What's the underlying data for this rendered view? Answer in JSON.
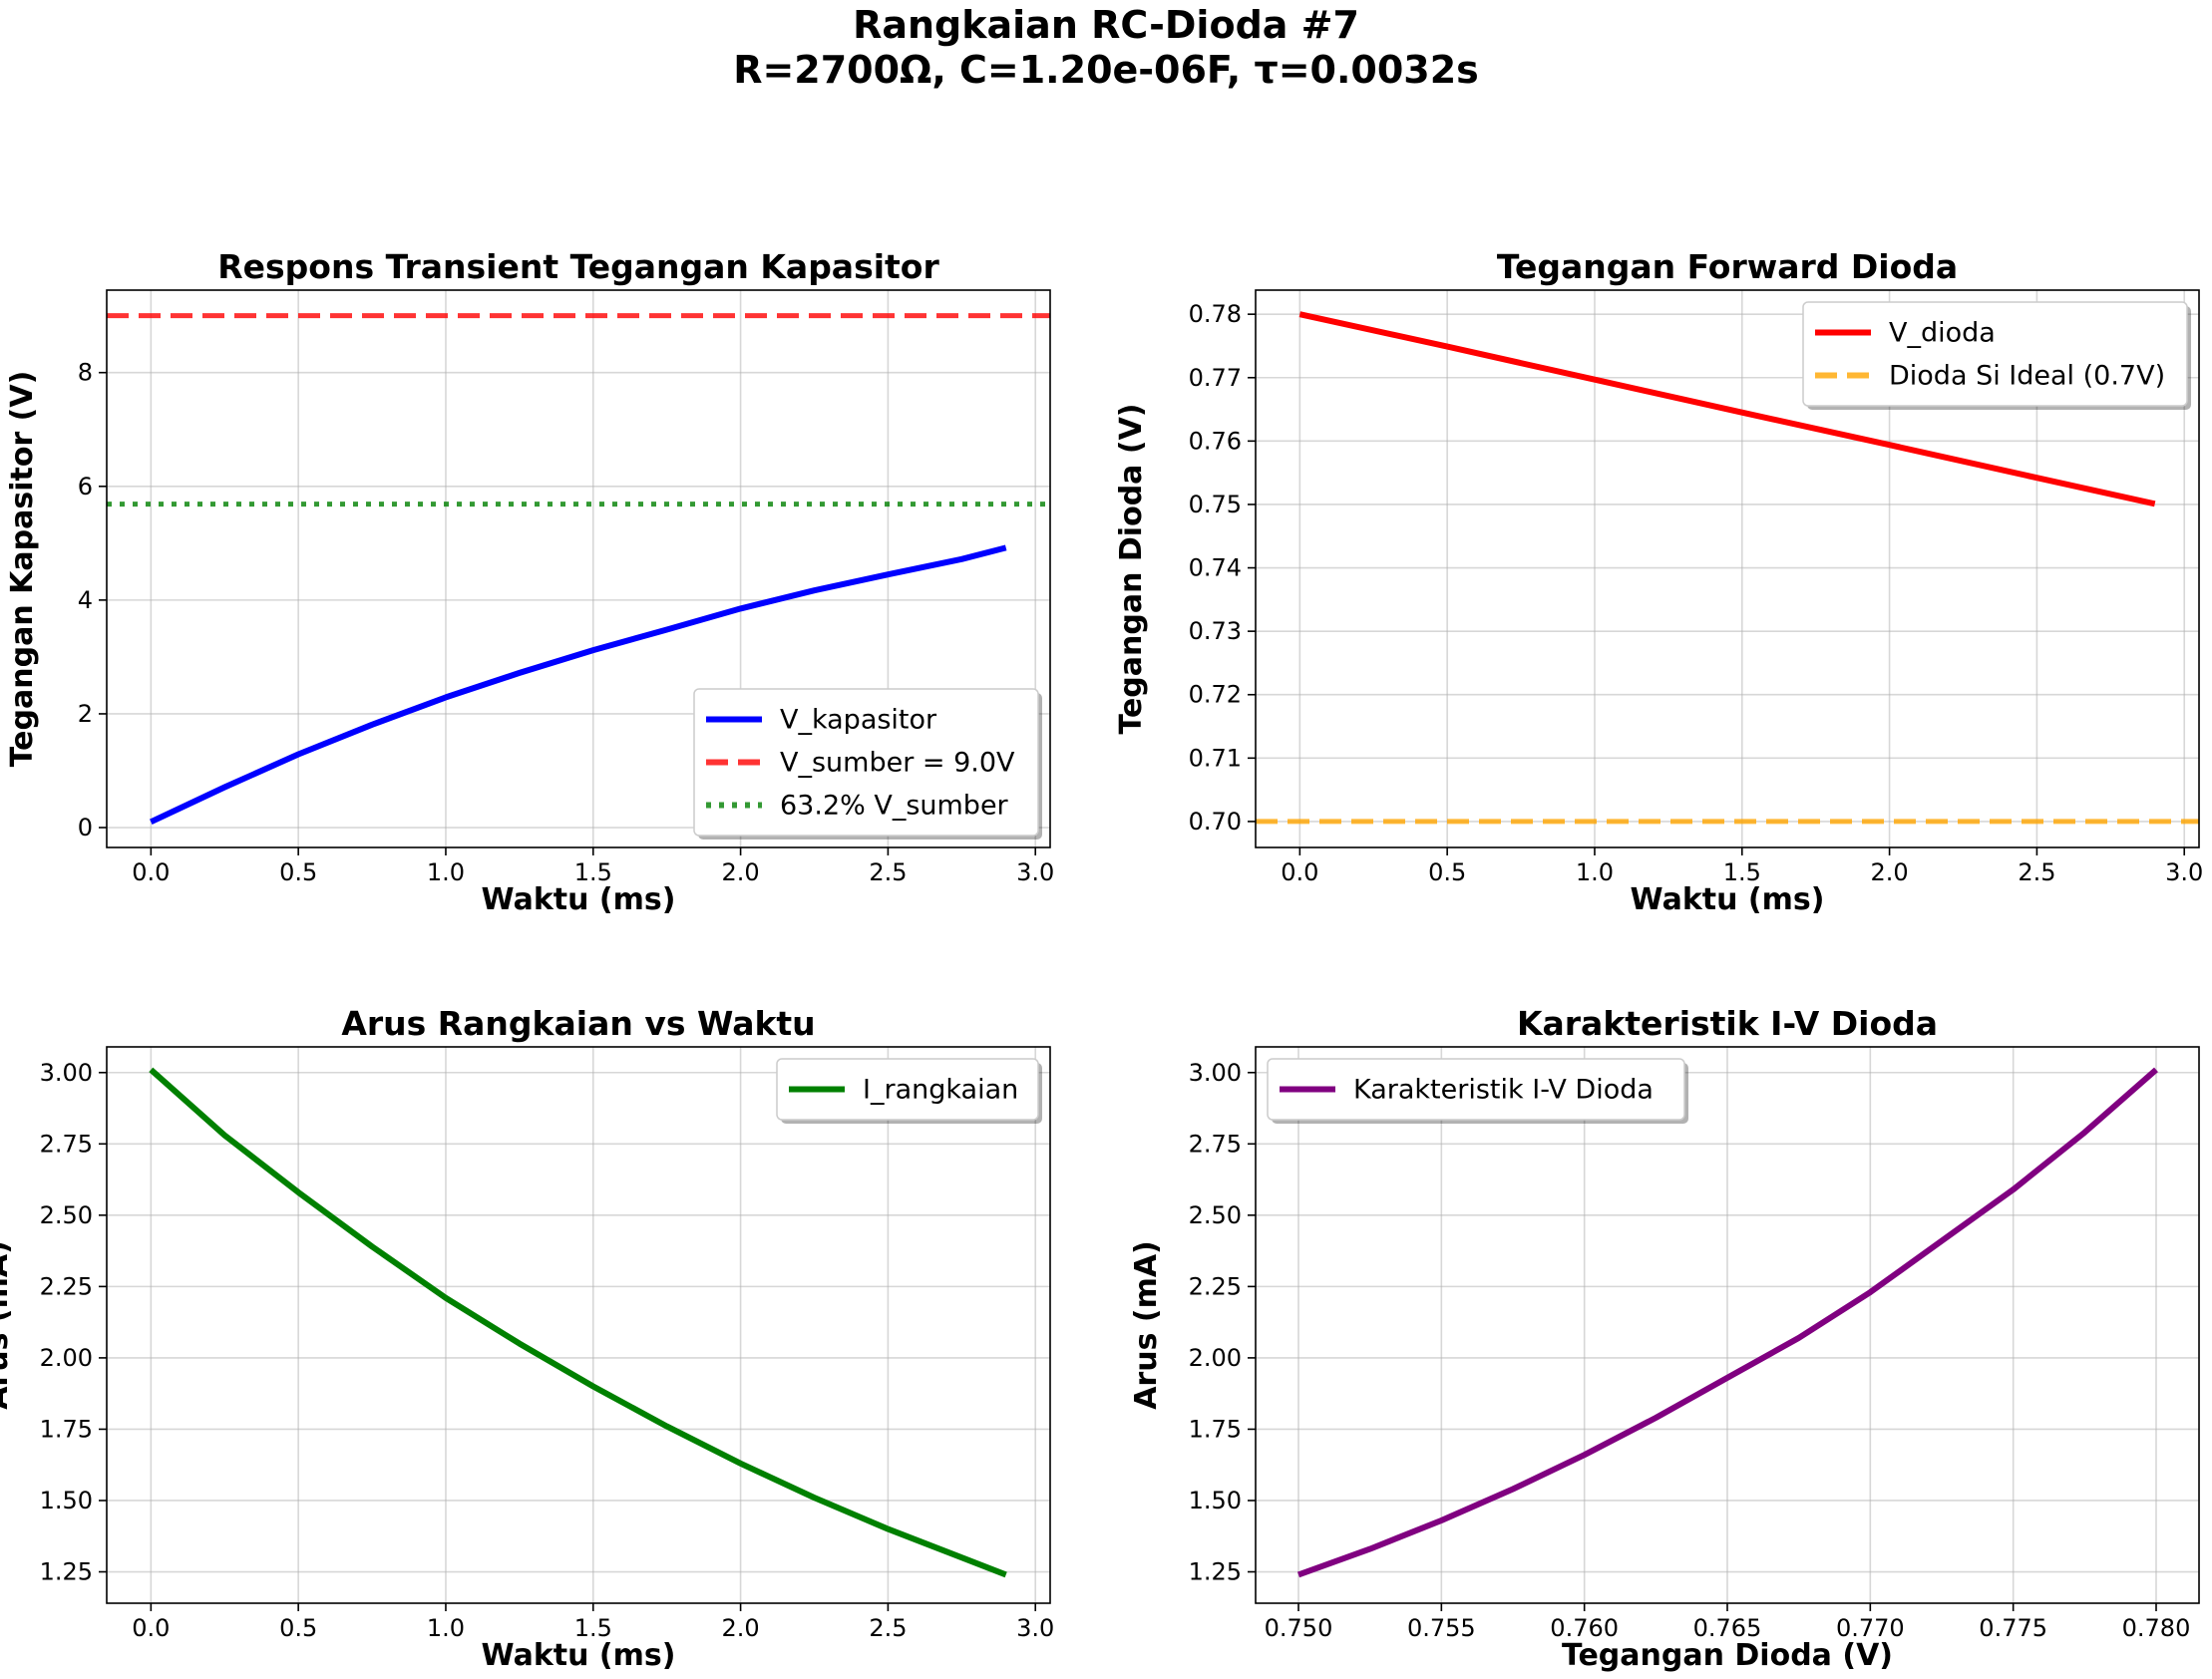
{
  "figure": {
    "title_line1": "Rangkaian RC-Dioda #7",
    "title_line2": "R=2700Ω, C=1.20e-06F, τ=0.0032s"
  },
  "chart_data": [
    {
      "id": "p1",
      "type": "line",
      "title": "Respons Transient Tegangan Kapasitor",
      "xlabel": "Waktu (ms)",
      "ylabel": "Tegangan Kapasitor (V)",
      "xlim": [
        -0.15,
        3.05
      ],
      "ylim": [
        -0.35,
        9.45
      ],
      "xticks": [
        0.0,
        0.5,
        1.0,
        1.5,
        2.0,
        2.5,
        3.0
      ],
      "xtick_labels": [
        "0.0",
        "0.5",
        "1.0",
        "1.5",
        "2.0",
        "2.5",
        "3.0"
      ],
      "yticks": [
        0,
        2,
        4,
        6,
        8
      ],
      "ytick_labels": [
        "0",
        "2",
        "4",
        "6",
        "8"
      ],
      "grid": true,
      "legend": "lower right",
      "series": [
        {
          "name": "V_kapasitor",
          "style": "solid",
          "color": "#0000ff",
          "x": [
            0.0,
            0.25,
            0.5,
            0.75,
            1.0,
            1.25,
            1.5,
            1.75,
            2.0,
            2.25,
            2.5,
            2.75,
            2.9
          ],
          "y": [
            0.1,
            0.71,
            1.29,
            1.81,
            2.29,
            2.72,
            3.12,
            3.48,
            3.85,
            4.17,
            4.45,
            4.72,
            4.92
          ]
        },
        {
          "name": "V_sumber = 9.0V",
          "style": "dashed",
          "color": "#ff0000",
          "opacity": 0.8,
          "hline": 9.0
        },
        {
          "name": "63.2% V_sumber",
          "style": "dotted",
          "color": "#008000",
          "opacity": 0.8,
          "hline": 5.688
        }
      ]
    },
    {
      "id": "p2",
      "type": "line",
      "title": "Tegangan Forward Dioda",
      "xlabel": "Waktu (ms)",
      "ylabel": "Tegangan Dioda (V)",
      "xlim": [
        -0.15,
        3.05
      ],
      "ylim": [
        0.6959,
        0.7838
      ],
      "xticks": [
        0.0,
        0.5,
        1.0,
        1.5,
        2.0,
        2.5,
        3.0
      ],
      "xtick_labels": [
        "0.0",
        "0.5",
        "1.0",
        "1.5",
        "2.0",
        "2.5",
        "3.0"
      ],
      "yticks": [
        0.7,
        0.71,
        0.72,
        0.73,
        0.74,
        0.75,
        0.76,
        0.77,
        0.78
      ],
      "ytick_labels": [
        "0.70",
        "0.71",
        "0.72",
        "0.73",
        "0.74",
        "0.75",
        "0.76",
        "0.77",
        "0.78"
      ],
      "grid": true,
      "legend": "upper right",
      "series": [
        {
          "name": "V_dioda",
          "style": "solid",
          "color": "#ff0000",
          "x": [
            0.0,
            0.5,
            1.0,
            1.5,
            2.0,
            2.5,
            2.9
          ],
          "y": [
            0.78,
            0.7749,
            0.7697,
            0.7645,
            0.7594,
            0.7542,
            0.7501
          ]
        },
        {
          "name": "Dioda Si Ideal (0.7V)",
          "style": "dashed",
          "color": "#ffa500",
          "opacity": 0.8,
          "hline": 0.7
        }
      ]
    },
    {
      "id": "p3",
      "type": "line",
      "title": "Arus Rangkaian vs Waktu",
      "xlabel": "Waktu (ms)",
      "ylabel": "Arus (mA)",
      "xlim": [
        -0.15,
        3.05
      ],
      "ylim": [
        1.14,
        3.09
      ],
      "xticks": [
        0.0,
        0.5,
        1.0,
        1.5,
        2.0,
        2.5,
        3.0
      ],
      "xtick_labels": [
        "0.0",
        "0.5",
        "1.0",
        "1.5",
        "2.0",
        "2.5",
        "3.0"
      ],
      "yticks": [
        1.25,
        1.5,
        1.75,
        2.0,
        2.25,
        2.5,
        2.75,
        3.0
      ],
      "ytick_labels": [
        "1.25",
        "1.50",
        "1.75",
        "2.00",
        "2.25",
        "2.50",
        "2.75",
        "3.00"
      ],
      "grid": true,
      "legend": "upper right",
      "series": [
        {
          "name": "I_rangkaian",
          "style": "solid",
          "color": "#008000",
          "x": [
            0.0,
            0.25,
            0.5,
            0.75,
            1.0,
            1.25,
            1.5,
            1.75,
            2.0,
            2.25,
            2.5,
            2.75,
            2.9
          ],
          "y": [
            3.01,
            2.78,
            2.58,
            2.39,
            2.21,
            2.05,
            1.9,
            1.76,
            1.63,
            1.51,
            1.4,
            1.3,
            1.24
          ]
        }
      ]
    },
    {
      "id": "p4",
      "type": "line",
      "title": "Karakteristik I-V Dioda",
      "xlabel": "Tegangan Dioda (V)",
      "ylabel": "Arus (mA)",
      "xlim": [
        0.7485,
        0.7815
      ],
      "ylim": [
        1.14,
        3.09
      ],
      "xticks": [
        0.75,
        0.755,
        0.76,
        0.765,
        0.77,
        0.775,
        0.78
      ],
      "xtick_labels": [
        "0.750",
        "0.755",
        "0.760",
        "0.765",
        "0.770",
        "0.775",
        "0.780"
      ],
      "yticks": [
        1.25,
        1.5,
        1.75,
        2.0,
        2.25,
        2.5,
        2.75,
        3.0
      ],
      "ytick_labels": [
        "1.25",
        "1.50",
        "1.75",
        "2.00",
        "2.25",
        "2.50",
        "2.75",
        "3.00"
      ],
      "grid": true,
      "legend": "upper left",
      "series": [
        {
          "name": "Karakteristik I-V Dioda",
          "style": "solid",
          "color": "#800080",
          "x": [
            0.75,
            0.7525,
            0.755,
            0.7575,
            0.76,
            0.7625,
            0.765,
            0.7675,
            0.77,
            0.7725,
            0.775,
            0.7775,
            0.78
          ],
          "y": [
            1.24,
            1.33,
            1.43,
            1.54,
            1.66,
            1.79,
            1.93,
            2.07,
            2.23,
            2.41,
            2.59,
            2.79,
            3.01
          ]
        }
      ]
    }
  ]
}
